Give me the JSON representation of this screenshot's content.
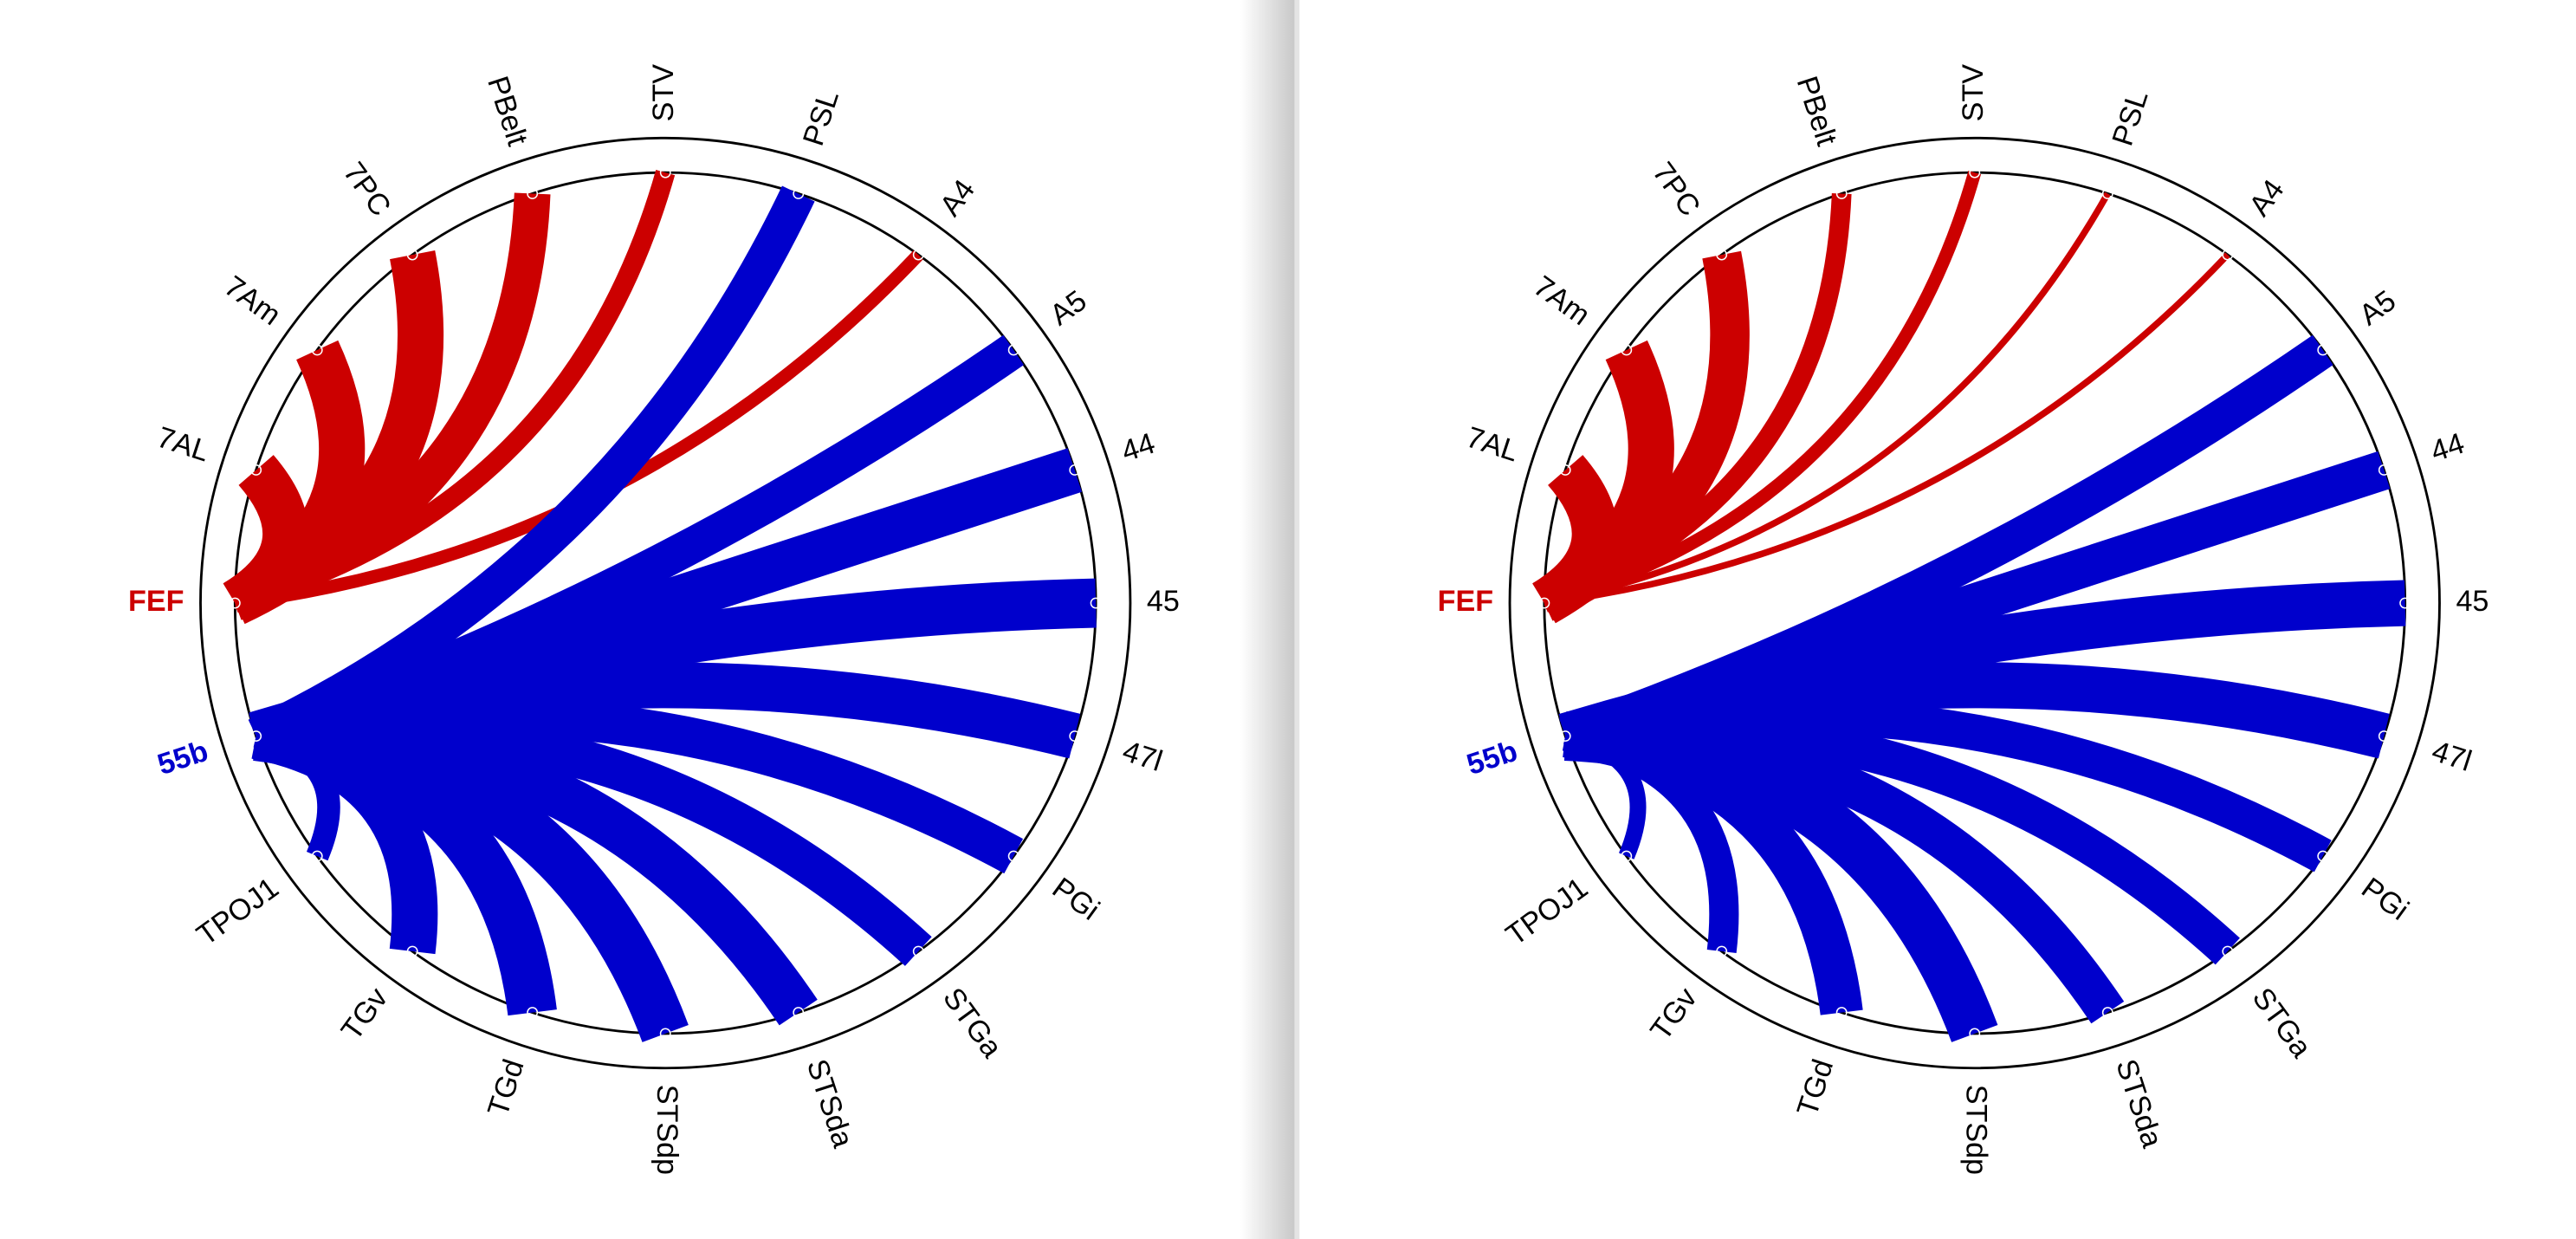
{
  "panels": [
    {
      "nodes": [
        {
          "label": "STV"
        },
        {
          "label": "PSL"
        },
        {
          "label": "A4"
        },
        {
          "label": "A5"
        },
        {
          "label": "44"
        },
        {
          "label": "45"
        },
        {
          "label": "47l"
        },
        {
          "label": "PGi"
        },
        {
          "label": "STGa"
        },
        {
          "label": "STSda"
        },
        {
          "label": "STSdp"
        },
        {
          "label": "TGd"
        },
        {
          "label": "TGv"
        },
        {
          "label": "TPOJ1"
        },
        {
          "label": "55b",
          "color": "#0000cc"
        },
        {
          "label": "FEF",
          "color": "#cc0000"
        },
        {
          "label": "7AL"
        },
        {
          "label": "7Am"
        },
        {
          "label": "7PC"
        },
        {
          "label": "PBelt"
        }
      ],
      "links": [
        {
          "source": 15,
          "target": 16,
          "weight": 28,
          "color": "#cc0000"
        },
        {
          "source": 15,
          "target": 17,
          "weight": 28,
          "color": "#cc0000"
        },
        {
          "source": 15,
          "target": 18,
          "weight": 28,
          "color": "#cc0000"
        },
        {
          "source": 15,
          "target": 19,
          "weight": 22,
          "color": "#cc0000"
        },
        {
          "source": 15,
          "target": 0,
          "weight": 12,
          "color": "#cc0000"
        },
        {
          "source": 15,
          "target": 2,
          "weight": 8,
          "color": "#cc0000"
        },
        {
          "source": 14,
          "target": 1,
          "weight": 22,
          "color": "#0000cc"
        },
        {
          "source": 14,
          "target": 3,
          "weight": 22,
          "color": "#0000cc"
        },
        {
          "source": 14,
          "target": 4,
          "weight": 28,
          "color": "#0000cc"
        },
        {
          "source": 14,
          "target": 5,
          "weight": 30,
          "color": "#0000cc"
        },
        {
          "source": 14,
          "target": 6,
          "weight": 28,
          "color": "#0000cc"
        },
        {
          "source": 14,
          "target": 7,
          "weight": 24,
          "color": "#0000cc"
        },
        {
          "source": 14,
          "target": 8,
          "weight": 24,
          "color": "#0000cc"
        },
        {
          "source": 14,
          "target": 9,
          "weight": 28,
          "color": "#0000cc"
        },
        {
          "source": 14,
          "target": 10,
          "weight": 30,
          "color": "#0000cc"
        },
        {
          "source": 14,
          "target": 11,
          "weight": 30,
          "color": "#0000cc"
        },
        {
          "source": 14,
          "target": 12,
          "weight": 28,
          "color": "#0000cc"
        },
        {
          "source": 14,
          "target": 13,
          "weight": 14,
          "color": "#0000cc"
        }
      ]
    },
    {
      "nodes": [
        {
          "label": "STV"
        },
        {
          "label": "PSL"
        },
        {
          "label": "A4"
        },
        {
          "label": "A5"
        },
        {
          "label": "44"
        },
        {
          "label": "45"
        },
        {
          "label": "47l"
        },
        {
          "label": "PGi"
        },
        {
          "label": "STGa"
        },
        {
          "label": "STSda"
        },
        {
          "label": "STSdp"
        },
        {
          "label": "TGd"
        },
        {
          "label": "TGv"
        },
        {
          "label": "TPOJ1"
        },
        {
          "label": "55b",
          "color": "#0000cc"
        },
        {
          "label": "FEF",
          "color": "#cc0000"
        },
        {
          "label": "7AL"
        },
        {
          "label": "7Am"
        },
        {
          "label": "7PC"
        },
        {
          "label": "PBelt"
        }
      ],
      "links": [
        {
          "source": 15,
          "target": 16,
          "weight": 28,
          "color": "#cc0000"
        },
        {
          "source": 15,
          "target": 17,
          "weight": 28,
          "color": "#cc0000"
        },
        {
          "source": 15,
          "target": 18,
          "weight": 24,
          "color": "#cc0000"
        },
        {
          "source": 15,
          "target": 19,
          "weight": 12,
          "color": "#cc0000"
        },
        {
          "source": 15,
          "target": 0,
          "weight": 8,
          "color": "#cc0000"
        },
        {
          "source": 15,
          "target": 1,
          "weight": 4,
          "color": "#cc0000"
        },
        {
          "source": 15,
          "target": 2,
          "weight": 4,
          "color": "#cc0000"
        },
        {
          "source": 14,
          "target": 3,
          "weight": 22,
          "color": "#0000cc"
        },
        {
          "source": 14,
          "target": 4,
          "weight": 24,
          "color": "#0000cc"
        },
        {
          "source": 14,
          "target": 5,
          "weight": 28,
          "color": "#0000cc"
        },
        {
          "source": 14,
          "target": 6,
          "weight": 28,
          "color": "#0000cc"
        },
        {
          "source": 14,
          "target": 7,
          "weight": 22,
          "color": "#0000cc"
        },
        {
          "source": 14,
          "target": 8,
          "weight": 22,
          "color": "#0000cc"
        },
        {
          "source": 14,
          "target": 9,
          "weight": 24,
          "color": "#0000cc"
        },
        {
          "source": 14,
          "target": 10,
          "weight": 30,
          "color": "#0000cc"
        },
        {
          "source": 14,
          "target": 11,
          "weight": 26,
          "color": "#0000cc"
        },
        {
          "source": 14,
          "target": 12,
          "weight": 18,
          "color": "#0000cc"
        },
        {
          "source": 14,
          "target": 13,
          "weight": 10,
          "color": "#0000cc"
        }
      ]
    }
  ]
}
